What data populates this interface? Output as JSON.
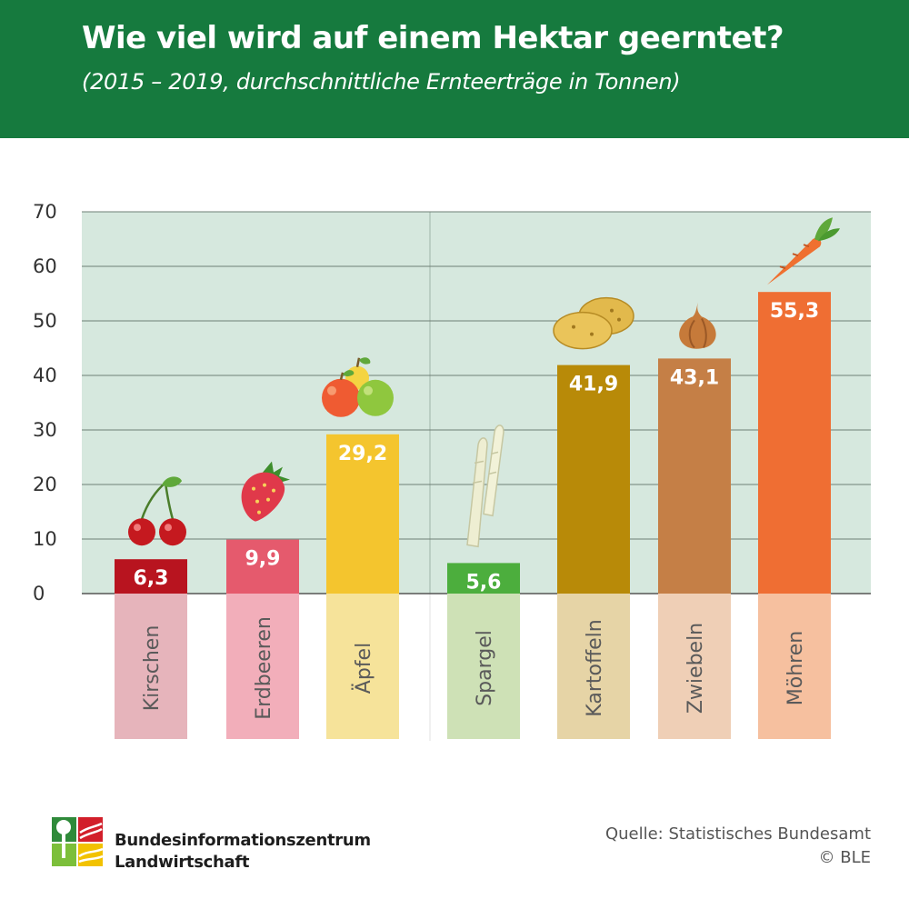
{
  "header": {
    "title": "Wie viel wird auf einem Hektar geerntet?",
    "subtitle": "(2015 – 2019, durchschnittliche Ernteerträge in Tonnen)"
  },
  "chart_data": {
    "type": "bar",
    "title": "Wie viel wird auf einem Hektar geerntet?",
    "subtitle": "(2015 – 2019, durchschnittliche Ernteerträge in Tonnen)",
    "ylim": [
      0,
      70
    ],
    "y_ticks": [
      "0",
      "10",
      "20",
      "30",
      "40",
      "50",
      "60",
      "70"
    ],
    "grid": true,
    "groups": [
      {
        "categories": [
          "Kirschen",
          "Erdbeeren",
          "Äpfel"
        ]
      },
      {
        "categories": [
          "Spargel",
          "Kartoffeln",
          "Zwiebeln",
          "Möhren"
        ]
      }
    ],
    "categories": [
      "Kirschen",
      "Erdbeeren",
      "Äpfel",
      "Spargel",
      "Kartoffeln",
      "Zwiebeln",
      "Möhren"
    ],
    "values": [
      6.3,
      9.9,
      29.2,
      5.6,
      41.9,
      43.1,
      55.3
    ],
    "value_labels": [
      "6,3",
      "9,9",
      "29,2",
      "5,6",
      "41,9",
      "43,1",
      "55,3"
    ],
    "bar_colors": [
      "#b8141f",
      "#e55a6d",
      "#f4c52e",
      "#4cae3d",
      "#b88a08",
      "#c57f46",
      "#ef6e33"
    ],
    "label_bg_colors": [
      "#e6b4bb",
      "#f2aeba",
      "#f6e39a",
      "#cee1b6",
      "#e6d4a6",
      "#efcfb6",
      "#f6c09f"
    ],
    "icons": [
      "cherry-icon",
      "strawberry-icon",
      "apple-icon",
      "asparagus-icon",
      "potato-icon",
      "onion-icon",
      "carrot-icon"
    ],
    "plot_bg": "#d6e8de"
  },
  "footer": {
    "org_line1": "Bundesinformationszentrum",
    "org_line2": "Landwirtschaft",
    "source": "Quelle: Statistisches Bundesamt",
    "copyright": "© BLE"
  },
  "colors": {
    "header_bg": "#167a3e",
    "text_dark": "#1e1e1e"
  }
}
